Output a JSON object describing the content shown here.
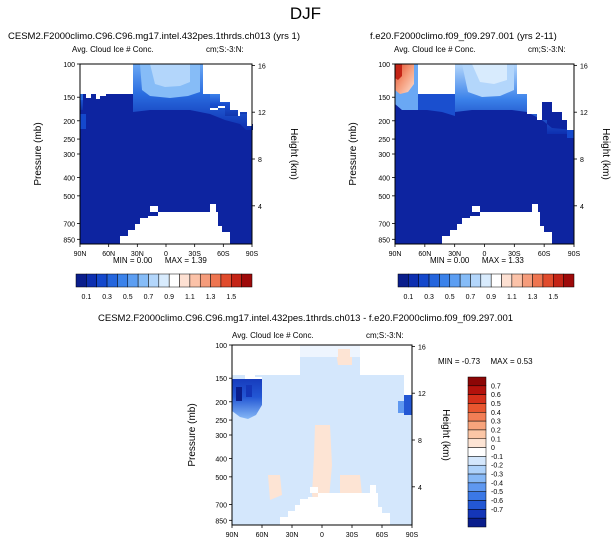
{
  "page": {
    "title": "DJF"
  },
  "colors": {
    "contour_ramp": [
      "#0a1e8c",
      "#0d2fb0",
      "#1448cc",
      "#2465dd",
      "#3b82ea",
      "#5c9ef2",
      "#86bcf7",
      "#b3d6fb",
      "#d8ebfd",
      "#ffffff",
      "#fde0d2",
      "#fbc2a8",
      "#f59c7b",
      "#ee7550",
      "#e04b2c",
      "#c42416",
      "#9e0a0a"
    ],
    "diff_ramp": [
      "#0a1e8c",
      "#1436b8",
      "#2357d4",
      "#3b78e6",
      "#5f98f0",
      "#86b8f6",
      "#aed2fa",
      "#d4e7fc",
      "#ffffff",
      "#fde4d4",
      "#fbc6a6",
      "#f8a47c",
      "#f27e55",
      "#e8562f",
      "#d5301a",
      "#b3120c",
      "#8c0606"
    ]
  },
  "chart_data": [
    {
      "type": "heatmap",
      "panel": "top-left",
      "title": "CESM2.F2000climo.C96.C96.mg17.intel.432pes.1thrds.ch013 (yrs 1)",
      "left_label": "Avg. Cloud Ice # Conc.",
      "right_label": "cm;S:-3:N:",
      "ylabel": "Pressure (mb)",
      "y2label": "Height (km)",
      "x_ticks": [
        "90N",
        "60N",
        "30N",
        "0",
        "30S",
        "60S",
        "90S"
      ],
      "y_ticks": [
        "100",
        "150",
        "200",
        "250",
        "300",
        "400",
        "500",
        "700",
        "850"
      ],
      "y2_ticks": [
        "16",
        "12",
        "8",
        "4"
      ],
      "min_label": "MIN =",
      "min_value": "0.00",
      "max_label": "MAX =",
      "max_value": "1.39"
    },
    {
      "type": "heatmap",
      "panel": "top-right",
      "title": "f.e20.F2000climo.f09_f09.297.001 (yrs 2-11)",
      "left_label": "Avg. Cloud Ice # Conc.",
      "right_label": "cm;S:-3:N:",
      "ylabel": "Pressure (mb)",
      "y2label": "Height (km)",
      "x_ticks": [
        "90N",
        "60N",
        "30N",
        "0",
        "30S",
        "60S",
        "90S"
      ],
      "y_ticks": [
        "100",
        "150",
        "200",
        "250",
        "300",
        "400",
        "500",
        "700",
        "850"
      ],
      "y2_ticks": [
        "16",
        "12",
        "8",
        "4"
      ],
      "min_label": "MIN =",
      "min_value": "0.00",
      "max_label": "MAX =",
      "max_value": "1.33"
    },
    {
      "type": "heatmap",
      "panel": "bottom-difference",
      "title": "CESM2.F2000climo.C96.C96.mg17.intel.432pes.1thrds.ch013 - f.e20.F2000climo.f09_f09.297.001",
      "left_label": "Avg. Cloud Ice # Conc.",
      "right_label": "cm;S:-3:N:",
      "ylabel": "Pressure (mb)",
      "y2label": "Height (km)",
      "x_ticks": [
        "90N",
        "60N",
        "30N",
        "0",
        "30S",
        "60S",
        "90S"
      ],
      "y_ticks": [
        "100",
        "150",
        "200",
        "250",
        "300",
        "400",
        "500",
        "700",
        "850"
      ],
      "y2_ticks": [
        "16",
        "12",
        "8",
        "4"
      ],
      "min_label": "MIN =",
      "min_value": "-0.73",
      "max_label": "MAX =",
      "max_value": "0.53"
    }
  ],
  "colorbar_top": {
    "labels": [
      "0.1",
      "0.3",
      "0.5",
      "0.7",
      "0.9",
      "1.1",
      "1.3",
      "1.5"
    ]
  },
  "colorbar_diff": {
    "labels": [
      "0.7",
      "0.6",
      "0.5",
      "0.4",
      "0.3",
      "0.2",
      "0.1",
      "0",
      "-0.1",
      "-0.2",
      "-0.3",
      "-0.4",
      "-0.5",
      "-0.6",
      "-0.7"
    ]
  }
}
